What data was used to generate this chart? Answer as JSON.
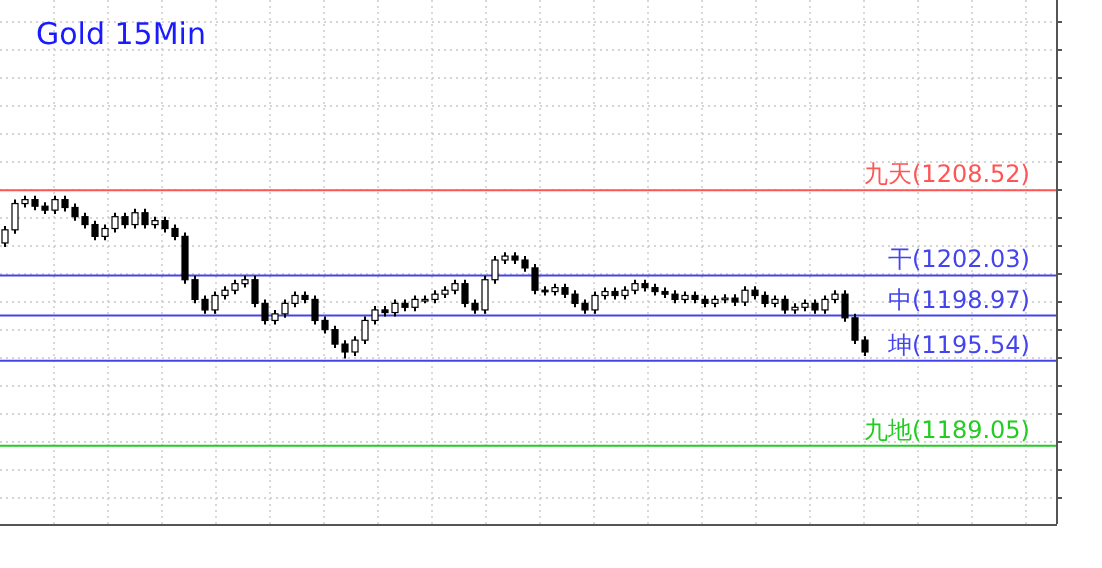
{
  "chart_data": {
    "type": "candlestick",
    "title": "Gold 15Min",
    "categories": [
      null,
      null,
      null,
      null,
      null,
      null,
      null,
      null,
      null,
      null,
      null,
      null,
      null,
      null,
      null,
      null,
      null,
      null,
      null,
      null,
      null,
      null,
      null,
      null,
      null,
      null,
      null,
      null,
      null,
      null,
      null,
      null,
      null,
      null,
      null,
      null,
      null,
      null,
      null,
      null,
      null,
      null,
      null,
      null,
      null,
      null,
      null,
      null,
      null,
      null,
      null,
      null,
      null,
      null,
      null,
      null,
      null,
      null,
      null,
      null,
      null,
      null,
      null,
      null,
      null,
      null,
      null,
      null,
      null,
      null,
      null,
      null,
      null,
      null,
      null,
      null,
      null,
      null,
      null,
      null,
      null,
      null,
      null,
      null,
      null,
      null,
      null
    ],
    "ohlc": [
      [
        1204.5,
        1205.8,
        1204.2,
        1205.5
      ],
      [
        1205.5,
        1207.8,
        1205.2,
        1207.5
      ],
      [
        1207.5,
        1208.1,
        1207.2,
        1207.8
      ],
      [
        1207.8,
        1208.1,
        1207.0,
        1207.3
      ],
      [
        1207.3,
        1207.6,
        1206.7,
        1207.0
      ],
      [
        1207.0,
        1208.1,
        1206.7,
        1207.8
      ],
      [
        1207.8,
        1208.1,
        1206.9,
        1207.2
      ],
      [
        1207.2,
        1207.5,
        1206.2,
        1206.5
      ],
      [
        1206.5,
        1206.8,
        1205.6,
        1205.9
      ],
      [
        1205.9,
        1206.2,
        1204.7,
        1205.0
      ],
      [
        1205.0,
        1205.9,
        1204.7,
        1205.6
      ],
      [
        1205.6,
        1206.8,
        1205.3,
        1206.5
      ],
      [
        1206.5,
        1206.8,
        1205.6,
        1205.9
      ],
      [
        1205.9,
        1207.1,
        1205.6,
        1206.8
      ],
      [
        1206.8,
        1207.1,
        1205.6,
        1205.9
      ],
      [
        1205.9,
        1206.5,
        1205.6,
        1206.2
      ],
      [
        1206.2,
        1206.5,
        1205.3,
        1205.6
      ],
      [
        1205.6,
        1205.9,
        1204.7,
        1205.0
      ],
      [
        1205.0,
        1205.3,
        1201.4,
        1201.7
      ],
      [
        1201.7,
        1202.0,
        1199.9,
        1200.2
      ],
      [
        1200.2,
        1200.5,
        1199.1,
        1199.4
      ],
      [
        1199.4,
        1200.8,
        1199.1,
        1200.5
      ],
      [
        1200.5,
        1201.2,
        1200.2,
        1200.9
      ],
      [
        1200.9,
        1201.7,
        1200.6,
        1201.4
      ],
      [
        1201.4,
        1202.0,
        1201.1,
        1201.7
      ],
      [
        1201.7,
        1202.0,
        1199.6,
        1199.9
      ],
      [
        1199.9,
        1200.2,
        1198.3,
        1198.6
      ],
      [
        1198.6,
        1199.4,
        1198.3,
        1199.1
      ],
      [
        1199.1,
        1200.2,
        1198.8,
        1199.9
      ],
      [
        1199.9,
        1200.8,
        1199.6,
        1200.5
      ],
      [
        1200.5,
        1200.8,
        1199.9,
        1200.2
      ],
      [
        1200.2,
        1200.5,
        1198.3,
        1198.6
      ],
      [
        1198.6,
        1198.9,
        1197.6,
        1197.9
      ],
      [
        1197.9,
        1198.2,
        1196.5,
        1196.8
      ],
      [
        1196.8,
        1197.1,
        1195.7,
        1196.2
      ],
      [
        1196.2,
        1197.4,
        1195.9,
        1197.1
      ],
      [
        1197.1,
        1198.9,
        1196.8,
        1198.6
      ],
      [
        1198.6,
        1199.7,
        1198.3,
        1199.4
      ],
      [
        1199.4,
        1199.7,
        1198.9,
        1199.2
      ],
      [
        1199.2,
        1200.2,
        1198.9,
        1199.9
      ],
      [
        1199.9,
        1200.2,
        1199.3,
        1199.6
      ],
      [
        1199.6,
        1200.5,
        1199.3,
        1200.2
      ],
      [
        1200.2,
        1200.5,
        1199.9,
        1200.2
      ],
      [
        1200.2,
        1200.9,
        1199.9,
        1200.6
      ],
      [
        1200.6,
        1201.2,
        1200.3,
        1200.9
      ],
      [
        1200.9,
        1201.7,
        1200.6,
        1201.4
      ],
      [
        1201.4,
        1201.7,
        1199.6,
        1199.9
      ],
      [
        1199.9,
        1200.2,
        1199.1,
        1199.4
      ],
      [
        1199.4,
        1202.0,
        1199.1,
        1201.7
      ],
      [
        1201.7,
        1203.5,
        1201.4,
        1203.2
      ],
      [
        1203.2,
        1203.8,
        1202.9,
        1203.5
      ],
      [
        1203.5,
        1203.8,
        1202.9,
        1203.2
      ],
      [
        1203.2,
        1203.5,
        1202.3,
        1202.6
      ],
      [
        1202.6,
        1202.9,
        1200.6,
        1200.9
      ],
      [
        1200.9,
        1201.2,
        1200.5,
        1200.8
      ],
      [
        1200.8,
        1201.4,
        1200.5,
        1201.1
      ],
      [
        1201.1,
        1201.4,
        1200.3,
        1200.6
      ],
      [
        1200.6,
        1200.9,
        1199.6,
        1199.9
      ],
      [
        1199.9,
        1200.2,
        1199.1,
        1199.4
      ],
      [
        1199.4,
        1200.8,
        1199.1,
        1200.5
      ],
      [
        1200.5,
        1201.1,
        1200.2,
        1200.8
      ],
      [
        1200.8,
        1201.1,
        1200.2,
        1200.5
      ],
      [
        1200.5,
        1201.2,
        1200.2,
        1200.9
      ],
      [
        1200.9,
        1201.7,
        1200.6,
        1201.4
      ],
      [
        1201.4,
        1201.7,
        1200.8,
        1201.1
      ],
      [
        1201.1,
        1201.4,
        1200.5,
        1200.8
      ],
      [
        1200.8,
        1201.1,
        1200.3,
        1200.6
      ],
      [
        1200.6,
        1200.9,
        1199.9,
        1200.2
      ],
      [
        1200.2,
        1200.8,
        1199.9,
        1200.5
      ],
      [
        1200.5,
        1200.8,
        1199.9,
        1200.2
      ],
      [
        1200.2,
        1200.5,
        1199.6,
        1199.9
      ],
      [
        1199.9,
        1200.5,
        1199.6,
        1200.2
      ],
      [
        1200.2,
        1200.6,
        1199.9,
        1200.3
      ],
      [
        1200.3,
        1200.6,
        1199.7,
        1200.0
      ],
      [
        1200.0,
        1201.2,
        1199.7,
        1200.9
      ],
      [
        1200.9,
        1201.2,
        1200.2,
        1200.5
      ],
      [
        1200.5,
        1200.8,
        1199.6,
        1199.9
      ],
      [
        1199.9,
        1200.5,
        1199.6,
        1200.2
      ],
      [
        1200.2,
        1200.5,
        1199.1,
        1199.4
      ],
      [
        1199.4,
        1199.9,
        1199.1,
        1199.6
      ],
      [
        1199.6,
        1200.2,
        1199.3,
        1199.9
      ],
      [
        1199.9,
        1200.2,
        1199.1,
        1199.4
      ],
      [
        1199.4,
        1200.5,
        1199.1,
        1200.2
      ],
      [
        1200.2,
        1200.9,
        1199.9,
        1200.6
      ],
      [
        1200.6,
        1200.9,
        1198.5,
        1198.8
      ],
      [
        1198.8,
        1199.1,
        1196.8,
        1197.1
      ],
      [
        1197.1,
        1197.4,
        1195.9,
        1196.2
      ]
    ],
    "ylim": [
      1183.1,
      1223.0
    ],
    "grid": true,
    "ref_lines": [
      {
        "axis": "y",
        "value": 1208.52,
        "label": "九天(1208.52)",
        "color": "#ff5555"
      },
      {
        "axis": "y",
        "value": 1202.03,
        "label": "干(1202.03)",
        "color": "#4444ee"
      },
      {
        "axis": "y",
        "value": 1198.97,
        "label": "中(1198.97)",
        "color": "#4444ee"
      },
      {
        "axis": "y",
        "value": 1195.54,
        "label": "坤(1195.54)",
        "color": "#4444ee"
      },
      {
        "axis": "y",
        "value": 1189.05,
        "label": "九地(1189.05)",
        "color": "#22cc22"
      }
    ]
  }
}
